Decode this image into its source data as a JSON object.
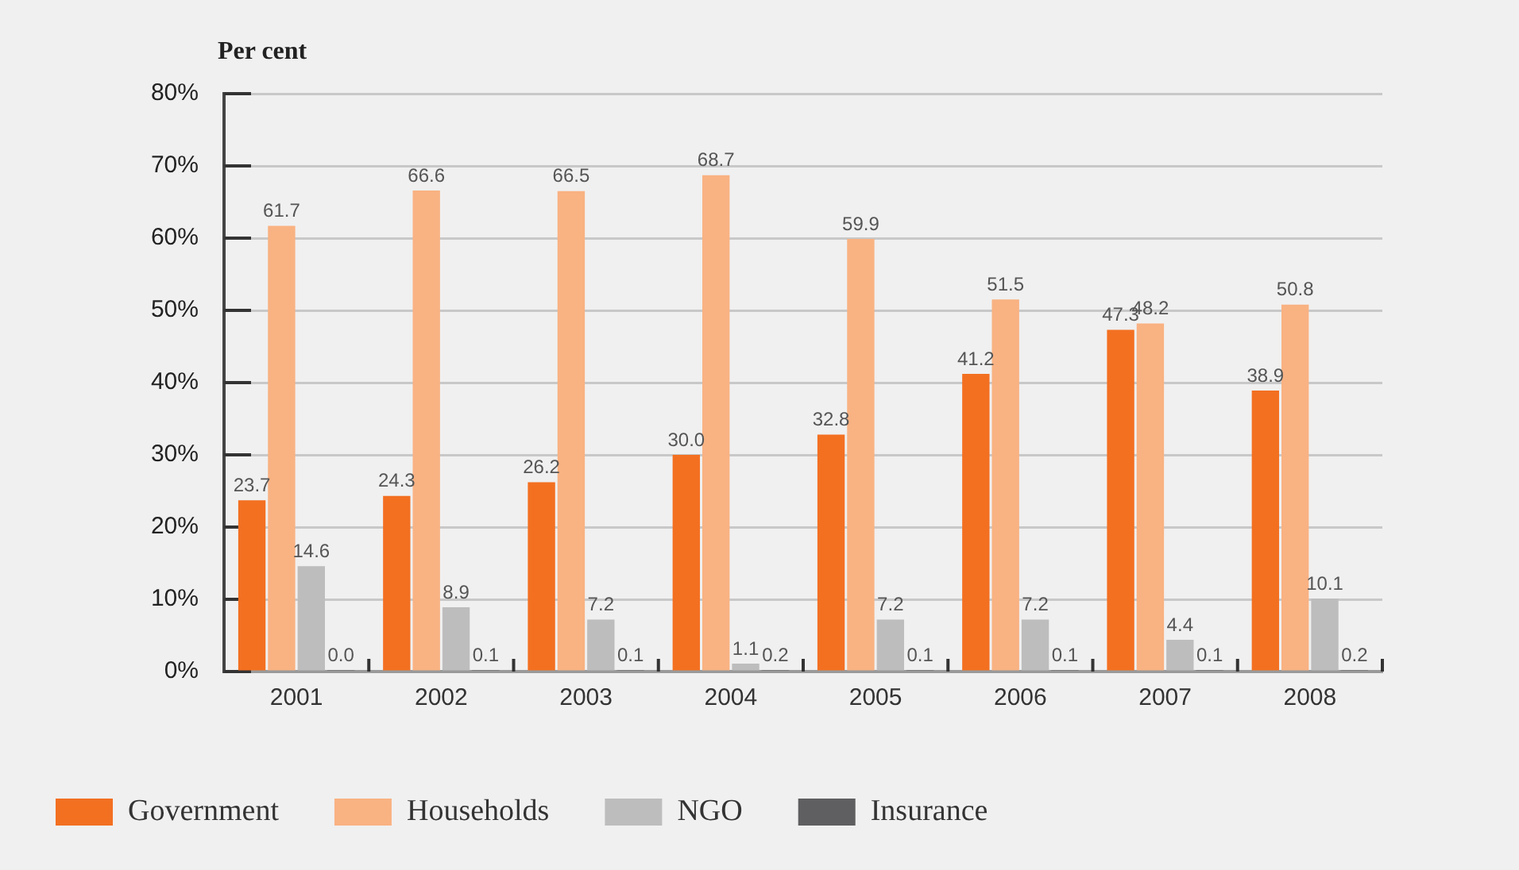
{
  "chart_data": {
    "type": "bar",
    "ylabel": "Per cent",
    "categories": [
      "2001",
      "2002",
      "2003",
      "2004",
      "2005",
      "2006",
      "2007",
      "2008"
    ],
    "series": [
      {
        "name": "Government",
        "color": "#f37021",
        "values": [
          23.7,
          24.3,
          26.2,
          30.0,
          32.8,
          41.2,
          47.3,
          38.9
        ],
        "value_labels": [
          "23.7",
          "24.3",
          "26.2",
          "30.0",
          "32.8",
          "41.2",
          "47.3",
          "38.9"
        ]
      },
      {
        "name": "Households",
        "color": "#f9b282",
        "values": [
          61.7,
          66.6,
          66.5,
          68.7,
          59.9,
          51.5,
          48.2,
          50.8
        ],
        "value_labels": [
          "61.7",
          "66.6",
          "66.5",
          "68.7",
          "59.9",
          "51.5",
          "48.2",
          "50.8"
        ]
      },
      {
        "name": "NGO",
        "color": "#bdbdbe",
        "values": [
          14.6,
          8.9,
          7.2,
          1.1,
          7.2,
          7.2,
          4.4,
          10.1
        ],
        "value_labels": [
          "14.6",
          "8.9",
          "7.2",
          "1.1",
          "7.2",
          "7.2",
          "4.4",
          "10.1"
        ]
      },
      {
        "name": "Insurance",
        "color": "#5f5f61",
        "values": [
          0.0,
          0.1,
          0.1,
          0.2,
          0.1,
          0.1,
          0.1,
          0.2
        ],
        "value_labels": [
          "0.0",
          "0.1",
          "0.1",
          "0.2",
          "0.1",
          "0.1",
          "0.1",
          "0.2"
        ]
      }
    ],
    "ylim": [
      0,
      80
    ],
    "yticks": [
      {
        "value": 0,
        "label": "0%"
      },
      {
        "value": 10,
        "label": "10%"
      },
      {
        "value": 20,
        "label": "20%"
      },
      {
        "value": 30,
        "label": "30%"
      },
      {
        "value": 40,
        "label": "40%"
      },
      {
        "value": 50,
        "label": "50%"
      },
      {
        "value": 60,
        "label": "60%"
      },
      {
        "value": 70,
        "label": "70%"
      },
      {
        "value": 80,
        "label": "80%"
      }
    ],
    "grid": "y",
    "legend": "bottom left"
  }
}
